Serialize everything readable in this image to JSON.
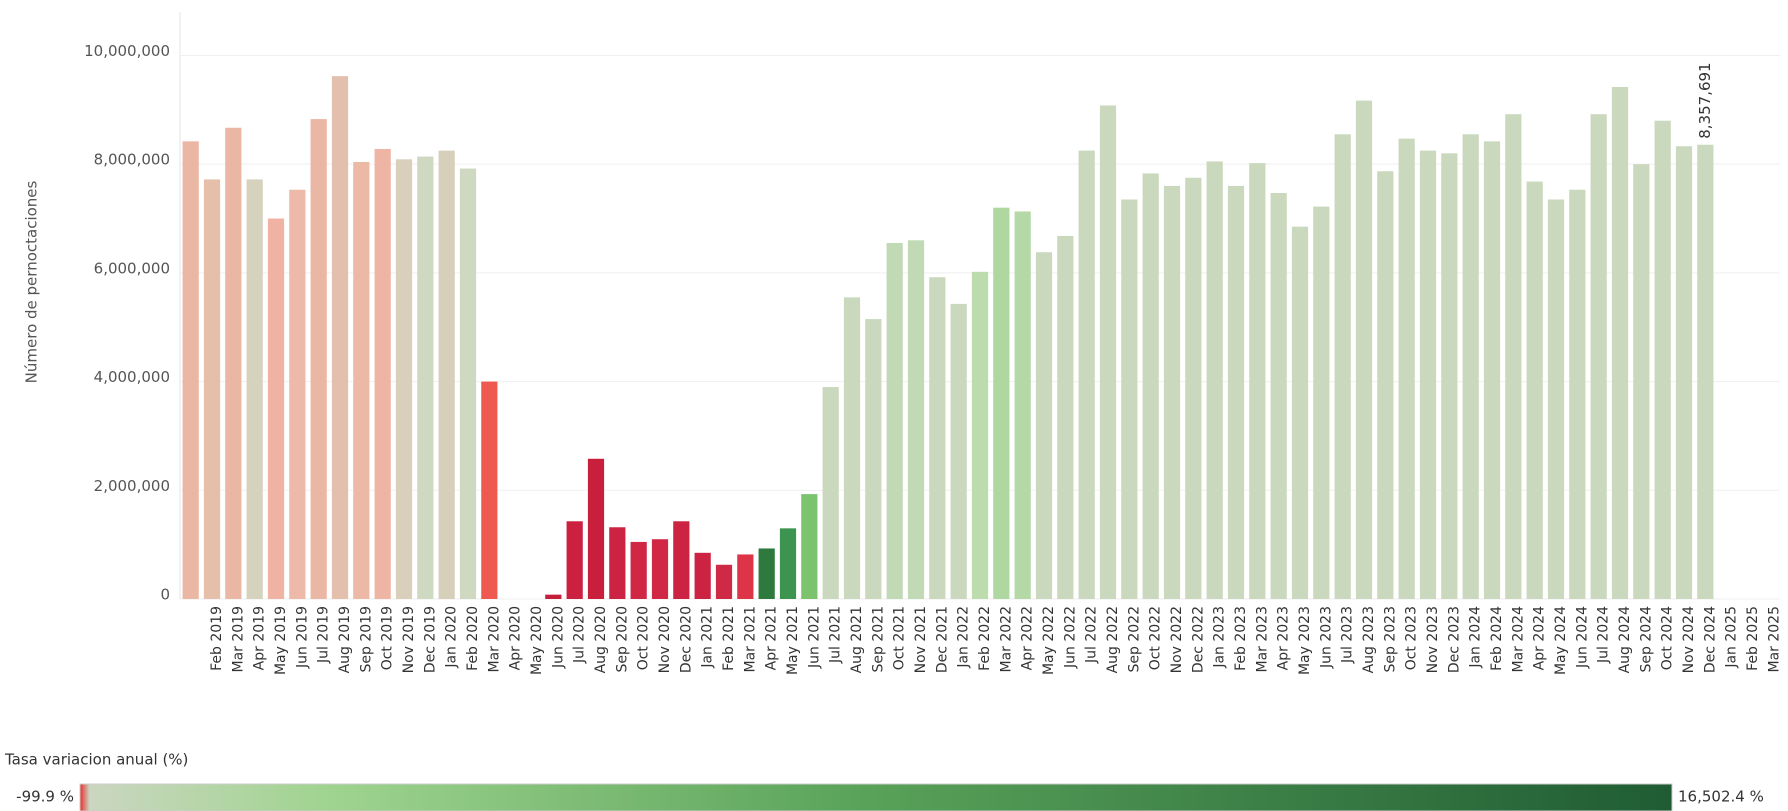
{
  "chart_data": {
    "type": "bar",
    "y_axis_label": "Número de pernoctaciones",
    "categories": [
      null,
      "Feb 2019",
      "Mar 2019",
      "Apr 2019",
      "May 2019",
      "Jun 2019",
      "Jul 2019",
      "Aug 2019",
      "Sep 2019",
      "Oct 2019",
      "Nov 2019",
      "Dec 2019",
      "Jan 2020",
      "Feb 2020",
      "Mar 2020",
      "Apr 2020",
      "May 2020",
      "Jun 2020",
      "Jul 2020",
      "Aug 2020",
      "Sep 2020",
      "Oct 2020",
      "Nov 2020",
      "Dec 2020",
      "Jan 2021",
      "Feb 2021",
      "Mar 2021",
      "Apr 2021",
      "May 2021",
      "Jun 2021",
      "Jul 2021",
      "Aug 2021",
      "Sep 2021",
      "Oct 2021",
      "Nov 2021",
      "Dec 2021",
      "Jan 2022",
      "Feb 2022",
      "Mar 2022",
      "Apr 2022",
      "May 2022",
      "Jun 2022",
      "Jul 2022",
      "Aug 2022",
      "Sep 2022",
      "Oct 2022",
      "Nov 2022",
      "Dec 2022",
      "Jan 2023",
      "Feb 2023",
      "Mar 2023",
      "Apr 2023",
      "May 2023",
      "Jun 2023",
      "Jul 2023",
      "Aug 2023",
      "Sep 2023",
      "Oct 2023",
      "Nov 2023",
      "Dec 2023",
      "Jan 2024",
      "Feb 2024",
      "Mar 2024",
      "Apr 2024",
      "May 2024",
      "Jun 2024",
      "Jul 2024",
      "Aug 2024",
      "Sep 2024",
      "Oct 2024",
      "Nov 2024",
      "Dec 2024",
      "Jan 2025",
      "Feb 2025",
      "Mar 2025"
    ],
    "values": [
      8420000,
      7720000,
      8670000,
      7720000,
      7000000,
      7530000,
      8830000,
      9620000,
      8040000,
      8280000,
      8090000,
      8140000,
      8250000,
      7920000,
      4000000,
      null,
      null,
      80000,
      1430000,
      2580000,
      1320000,
      1050000,
      1100000,
      1430000,
      850000,
      630000,
      820000,
      930000,
      1300000,
      1930000,
      3900000,
      5550000,
      5150000,
      6550000,
      6600000,
      5920000,
      5430000,
      6020000,
      7200000,
      7130000,
      6380000,
      6680000,
      8250000,
      9080000,
      7350000,
      7830000,
      7600000,
      7750000,
      8050000,
      7600000,
      8020000,
      7470000,
      6850000,
      7220000,
      8550000,
      9170000,
      7870000,
      8470000,
      8250000,
      8200000,
      8550000,
      8420000,
      8920000,
      7680000,
      7350000,
      7530000,
      8920000,
      9420000,
      8000000,
      8800000,
      8330000,
      8357691,
      null,
      null,
      null
    ],
    "value_labels": [
      null,
      null,
      null,
      null,
      null,
      null,
      null,
      null,
      null,
      null,
      null,
      null,
      null,
      null,
      null,
      null,
      null,
      null,
      null,
      null,
      null,
      null,
      null,
      null,
      null,
      null,
      null,
      null,
      null,
      null,
      null,
      null,
      null,
      null,
      null,
      null,
      null,
      null,
      null,
      null,
      null,
      null,
      null,
      null,
      null,
      null,
      null,
      null,
      null,
      null,
      null,
      null,
      null,
      null,
      null,
      null,
      null,
      null,
      null,
      null,
      null,
      null,
      null,
      null,
      null,
      null,
      null,
      null,
      null,
      null,
      null,
      "8,357,691",
      null,
      null,
      null
    ],
    "colors": [
      "#ebb7a5",
      "#e6bfab",
      "#ebb7a5",
      "#d5d2bd",
      "#f0b3a3",
      "#edb9a8",
      "#ebb7a5",
      "#e2c0ad",
      "#ebb9a6",
      "#eeb5a4",
      "#d9cfba",
      "#cfd8c1",
      "#d6d0bb",
      "#cfd8c1",
      "#ee5a50",
      null,
      null,
      "#c41e3a",
      "#cc2040",
      "#c8203c",
      "#cc2342",
      "#d02844",
      "#d02844",
      "#cc2342",
      "#cc2342",
      "#cf2a45",
      "#de3448",
      "#2e7a3e",
      "#3d9350",
      "#7cc36e",
      "#cad8be",
      "#cad8be",
      "#cad8be",
      "#c2d9b6",
      "#c2d9b6",
      "#cad8be",
      "#cad8be",
      "#bcdcae",
      "#aed8a0",
      "#b4d9a6",
      "#cad8be",
      "#cad8be",
      "#cad8be",
      "#cad8be",
      "#cad8be",
      "#cad8be",
      "#cad8be",
      "#cad8be",
      "#cad8be",
      "#cad8be",
      "#cad8be",
      "#cad8be",
      "#cad8be",
      "#cad8be",
      "#cad8be",
      "#cad8be",
      "#cad8be",
      "#cad8be",
      "#cad8be",
      "#cad8be",
      "#cad8be",
      "#cad8be",
      "#cad8be",
      "#cad8be",
      "#cad8be",
      "#cad8be",
      "#cad8be",
      "#cad8be",
      "#cad8be",
      "#cad8be",
      "#cad8be",
      "#cad8be",
      null,
      null,
      null
    ],
    "ylim": [
      0,
      10800000
    ],
    "yticks": [
      0,
      {
        "value": 2000000,
        "label": "2,000,000"
      },
      {
        "value": 4000000,
        "label": "4,000,000"
      },
      {
        "value": 6000000,
        "label": "6,000,000"
      },
      {
        "value": 8000000,
        "label": "8,000,000"
      },
      {
        "value": 10000000,
        "label": "10,000,000"
      }
    ],
    "grid": true,
    "color_legend": {
      "title": "Tasa variacion anual (%)",
      "min": {
        "value": -99.9,
        "label": "-99.9 %",
        "color": "#e8302e"
      },
      "max": {
        "value": 16502.4,
        "label": "16,502.4 %",
        "color": "#1f5c33"
      },
      "stops": [
        {
          "value": 0,
          "color": "#cbd6c0"
        },
        {
          "value": 2500,
          "color": "#9fd48f"
        },
        {
          "value": 8000,
          "color": "#5aa35a"
        }
      ]
    }
  }
}
